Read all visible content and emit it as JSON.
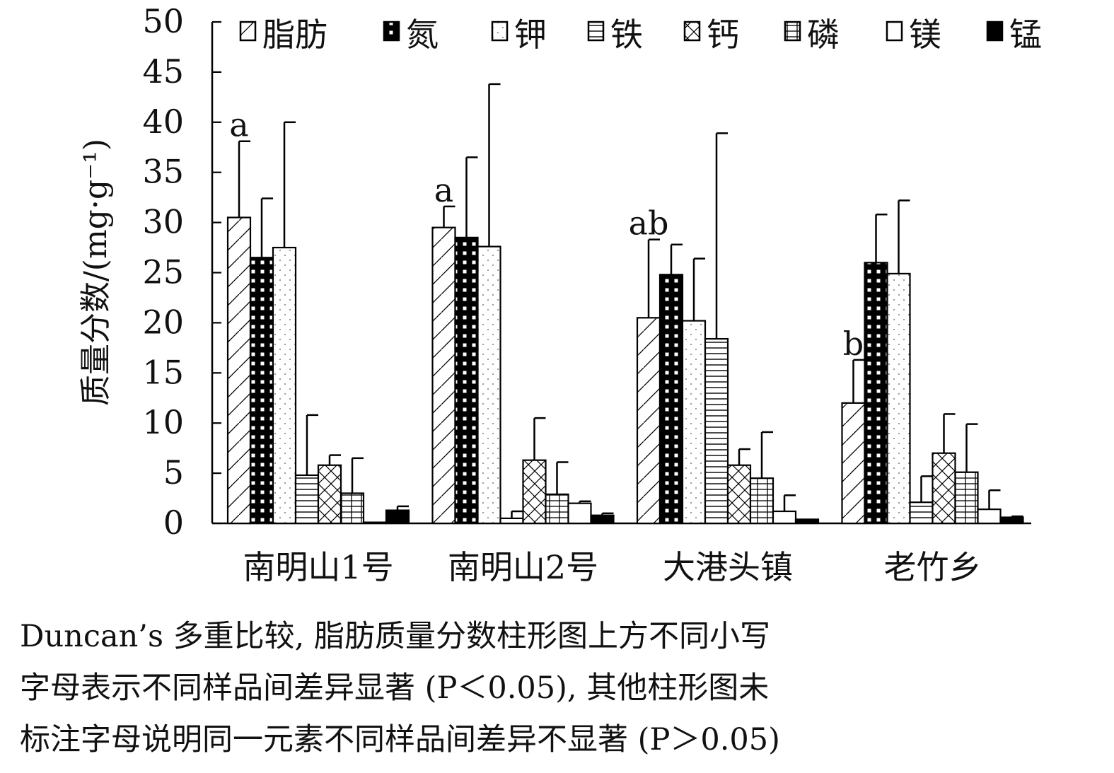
{
  "chart_data": {
    "type": "bar",
    "ylabel": "质量分数/(mg·g⁻¹)",
    "ylim": [
      0,
      50
    ],
    "yticks": [
      0,
      5,
      10,
      15,
      20,
      25,
      30,
      35,
      40,
      45,
      50
    ],
    "grid": false,
    "legend_position": "top",
    "categories": [
      "南明山1号",
      "南明山2号",
      "大港头镇",
      "老竹乡"
    ],
    "series": [
      {
        "name": "脂肪",
        "pattern": "diagonal",
        "values": [
          30.5,
          29.5,
          20.5,
          12.0
        ],
        "errors": [
          7.6,
          2.1,
          7.8,
          4.3
        ]
      },
      {
        "name": "氮",
        "pattern": "dark-grid",
        "values": [
          26.5,
          28.5,
          24.8,
          26.0
        ],
        "errors": [
          5.9,
          8.0,
          3.0,
          4.8
        ]
      },
      {
        "name": "钾",
        "pattern": "dotted",
        "values": [
          27.5,
          27.6,
          20.2,
          24.9
        ],
        "errors": [
          12.5,
          16.2,
          6.2,
          7.3
        ]
      },
      {
        "name": "铁",
        "pattern": "horizontal",
        "values": [
          4.8,
          0.5,
          18.4,
          2.1
        ],
        "errors": [
          6.0,
          0.7,
          20.5,
          2.6
        ]
      },
      {
        "name": "钙",
        "pattern": "crosshatch",
        "values": [
          5.8,
          6.3,
          5.8,
          7.0
        ],
        "errors": [
          1.0,
          4.2,
          1.6,
          3.9
        ]
      },
      {
        "name": "磷",
        "pattern": "grid",
        "values": [
          3.0,
          2.9,
          4.5,
          5.1
        ],
        "errors": [
          3.5,
          3.2,
          4.6,
          4.8
        ]
      },
      {
        "name": "镁",
        "pattern": "empty",
        "values": [
          0.1,
          2.0,
          1.2,
          1.4
        ],
        "errors": [
          0.0,
          0.2,
          1.6,
          1.9
        ]
      },
      {
        "name": "锰",
        "pattern": "solid",
        "values": [
          1.3,
          0.8,
          0.4,
          0.6
        ],
        "errors": [
          0.4,
          0.2,
          0.0,
          0.1
        ]
      }
    ],
    "annotations": [
      {
        "category": "南明山1号",
        "series": "脂肪",
        "text": "a"
      },
      {
        "category": "南明山2号",
        "series": "脂肪",
        "text": "a"
      },
      {
        "category": "大港头镇",
        "series": "脂肪",
        "text": "ab"
      },
      {
        "category": "老竹乡",
        "series": "脂肪",
        "text": "b"
      }
    ]
  },
  "caption": {
    "lines": [
      "Duncan’s 多重比较, 脂肪质量分数柱形图上方不同小写",
      "字母表示不同样品间差异显著 (P＜0.05), 其他柱形图未",
      "标注字母说明同一元素不同样品间差异不显著 (P＞0.05)"
    ]
  }
}
